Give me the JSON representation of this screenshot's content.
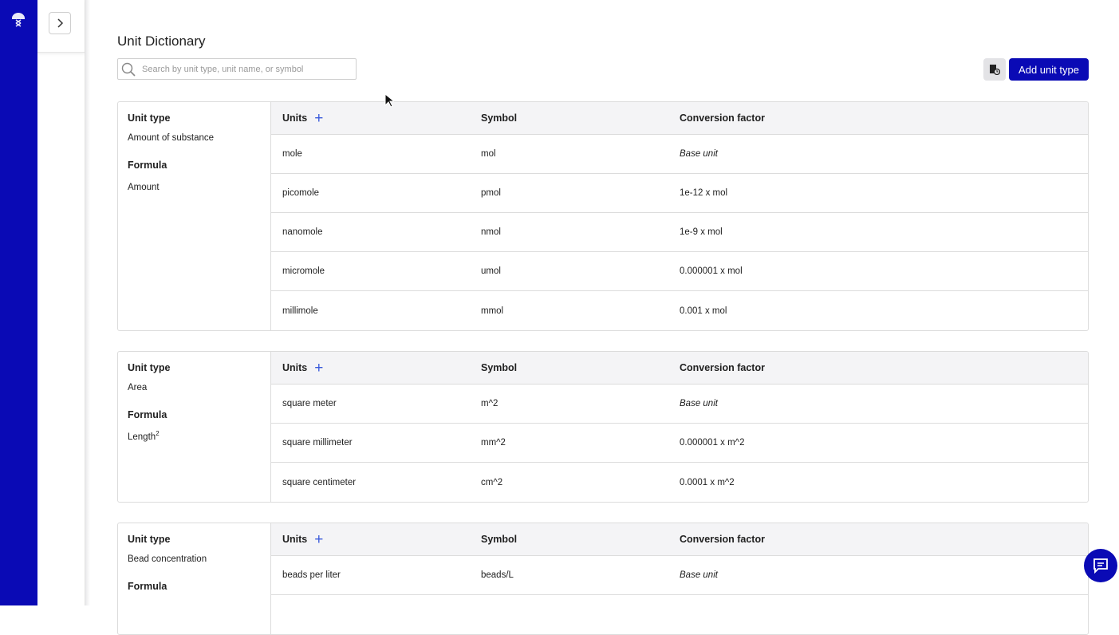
{
  "page": {
    "title": "Unit Dictionary",
    "search_placeholder": "Search by unit type, unit name, or symbol",
    "add_button": "Add unit type"
  },
  "headers": {
    "unit_type": "Unit type",
    "formula": "Formula",
    "units": "Units",
    "symbol": "Symbol",
    "conversion": "Conversion factor"
  },
  "cards": [
    {
      "unit_type": "Amount of substance",
      "formula": "Amount",
      "formula_sup": "",
      "rows": [
        {
          "name": "mole",
          "symbol": "mol",
          "factor": "Base unit",
          "base": true
        },
        {
          "name": "picomole",
          "symbol": "pmol",
          "factor": "1e-12 x mol"
        },
        {
          "name": "nanomole",
          "symbol": "nmol",
          "factor": "1e-9 x mol"
        },
        {
          "name": "micromole",
          "symbol": "umol",
          "factor": "0.000001 x mol"
        },
        {
          "name": "millimole",
          "symbol": "mmol",
          "factor": "0.001 x mol"
        }
      ]
    },
    {
      "unit_type": "Area",
      "formula": "Length",
      "formula_sup": "2",
      "rows": [
        {
          "name": "square meter",
          "symbol": "m^2",
          "factor": "Base unit",
          "base": true
        },
        {
          "name": "square millimeter",
          "symbol": "mm^2",
          "factor": "0.000001 x m^2"
        },
        {
          "name": "square centimeter",
          "symbol": "cm^2",
          "factor": "0.0001 x m^2"
        }
      ]
    },
    {
      "unit_type": "Bead concentration",
      "formula": "",
      "formula_sup": "",
      "rows": [
        {
          "name": "beads per liter",
          "symbol": "beads/L",
          "factor": "Base unit",
          "base": true
        },
        {
          "name": "",
          "symbol": "",
          "factor": ""
        }
      ]
    }
  ]
}
